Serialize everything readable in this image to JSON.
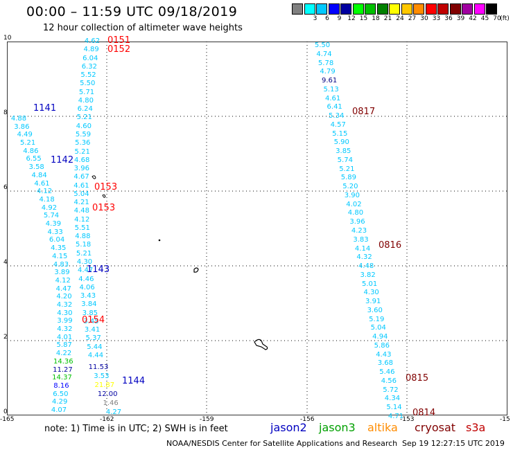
{
  "title": "00:00 – 11:59 UTC 09/18/2019",
  "subtitle": "12 hour collection of altimeter wave heights",
  "legend": {
    "unit_label": "(ft)",
    "swatches": [
      {
        "label": "",
        "color": "#808080"
      },
      {
        "label": "3",
        "color": "#00ffff"
      },
      {
        "label": "6",
        "color": "#00c8ff"
      },
      {
        "label": "9",
        "color": "#0000ff"
      },
      {
        "label": "12",
        "color": "#0000a0"
      },
      {
        "label": "15",
        "color": "#00ff00"
      },
      {
        "label": "18",
        "color": "#00c000"
      },
      {
        "label": "21",
        "color": "#008000"
      },
      {
        "label": "24",
        "color": "#ffff00"
      },
      {
        "label": "27",
        "color": "#ffc800"
      },
      {
        "label": "30",
        "color": "#ff8c00"
      },
      {
        "label": "33",
        "color": "#ff0000"
      },
      {
        "label": "36",
        "color": "#c00000"
      },
      {
        "label": "39",
        "color": "#800000"
      },
      {
        "label": "42",
        "color": "#a000a0"
      },
      {
        "label": "45",
        "color": "#ff00ff"
      },
      {
        "label": "70",
        "color": "#000000"
      }
    ]
  },
  "axes": {
    "x_ticks": [
      "-165",
      "-162",
      "-159",
      "-156",
      "-153",
      "-15"
    ],
    "y_ticks": [
      "0",
      "2",
      "4",
      "6",
      "8",
      "10"
    ]
  },
  "tracks": [
    {
      "name": "track-a",
      "values": [
        {
          "v": "4.62",
          "c": "#00c8ff"
        },
        {
          "v": "4.89",
          "c": "#00c8ff"
        },
        {
          "v": "6.04",
          "c": "#00c8ff"
        },
        {
          "v": "6.32",
          "c": "#00c8ff"
        },
        {
          "v": "5.52",
          "c": "#00c8ff"
        },
        {
          "v": "5.50",
          "c": "#00c8ff"
        },
        {
          "v": "5.71",
          "c": "#00c8ff"
        },
        {
          "v": "4.80",
          "c": "#00c8ff"
        },
        {
          "v": "6.24",
          "c": "#00c8ff"
        },
        {
          "v": "5.21",
          "c": "#00c8ff"
        },
        {
          "v": "4.60",
          "c": "#00c8ff"
        },
        {
          "v": "5.59",
          "c": "#00c8ff"
        },
        {
          "v": "5.36",
          "c": "#00c8ff"
        },
        {
          "v": "5.21",
          "c": "#00c8ff"
        },
        {
          "v": "4.68",
          "c": "#00c8ff"
        },
        {
          "v": "3.96",
          "c": "#00c8ff"
        },
        {
          "v": "4.67",
          "c": "#00c8ff"
        },
        {
          "v": "4.61",
          "c": "#00c8ff"
        },
        {
          "v": "5.04",
          "c": "#00c8ff"
        },
        {
          "v": "4.21",
          "c": "#00c8ff"
        },
        {
          "v": "4.48",
          "c": "#00c8ff"
        },
        {
          "v": "4.12",
          "c": "#00c8ff"
        },
        {
          "v": "5.51",
          "c": "#00c8ff"
        },
        {
          "v": "4.88",
          "c": "#00c8ff"
        },
        {
          "v": "5.18",
          "c": "#00c8ff"
        },
        {
          "v": "5.21",
          "c": "#00c8ff"
        },
        {
          "v": "4.30",
          "c": "#00c8ff"
        },
        {
          "v": "4.47",
          "c": "#00c8ff"
        },
        {
          "v": "4.46",
          "c": "#00c8ff"
        },
        {
          "v": "4.06",
          "c": "#00c8ff"
        },
        {
          "v": "3.43",
          "c": "#00c8ff"
        },
        {
          "v": "3.84",
          "c": "#00c8ff"
        },
        {
          "v": "3.85",
          "c": "#00c8ff"
        },
        {
          "v": "3.45",
          "c": "#00c8ff"
        },
        {
          "v": "3.41",
          "c": "#00c8ff"
        },
        {
          "v": "5.37",
          "c": "#00c8ff"
        },
        {
          "v": "5.44",
          "c": "#00c8ff"
        },
        {
          "v": "4.44",
          "c": "#00c8ff"
        }
      ]
    },
    {
      "name": "track-b",
      "values": [
        {
          "v": "4.88",
          "c": "#00c8ff"
        },
        {
          "v": "3.86",
          "c": "#00c8ff"
        },
        {
          "v": "4.49",
          "c": "#00c8ff"
        },
        {
          "v": "5.21",
          "c": "#00c8ff"
        },
        {
          "v": "4.86",
          "c": "#00c8ff"
        },
        {
          "v": "6.55",
          "c": "#00c8ff"
        },
        {
          "v": "3.58",
          "c": "#00c8ff"
        },
        {
          "v": "4.84",
          "c": "#00c8ff"
        },
        {
          "v": "4.61",
          "c": "#00c8ff"
        },
        {
          "v": "4.12",
          "c": "#00c8ff"
        },
        {
          "v": "4.18",
          "c": "#00c8ff"
        },
        {
          "v": "4.92",
          "c": "#00c8ff"
        },
        {
          "v": "5.74",
          "c": "#00c8ff"
        },
        {
          "v": "4.39",
          "c": "#00c8ff"
        },
        {
          "v": "4.33",
          "c": "#00c8ff"
        },
        {
          "v": "6.04",
          "c": "#00c8ff"
        },
        {
          "v": "4.35",
          "c": "#00c8ff"
        },
        {
          "v": "4.15",
          "c": "#00c8ff"
        },
        {
          "v": "4.83",
          "c": "#00c8ff"
        },
        {
          "v": "3.89",
          "c": "#00c8ff"
        },
        {
          "v": "4.12",
          "c": "#00c8ff"
        },
        {
          "v": "4.47",
          "c": "#00c8ff"
        },
        {
          "v": "4.20",
          "c": "#00c8ff"
        },
        {
          "v": "4.32",
          "c": "#00c8ff"
        },
        {
          "v": "4.30",
          "c": "#00c8ff"
        },
        {
          "v": "3.99",
          "c": "#00c8ff"
        },
        {
          "v": "4.32",
          "c": "#00c8ff"
        },
        {
          "v": "4.01",
          "c": "#00c8ff"
        },
        {
          "v": "5.87",
          "c": "#00c8ff"
        },
        {
          "v": "4.22",
          "c": "#00c8ff"
        },
        {
          "v": "14.36",
          "c": "#00c000"
        },
        {
          "v": "11.27",
          "c": "#0000a0"
        },
        {
          "v": "14.37",
          "c": "#00c000"
        },
        {
          "v": "8.16",
          "c": "#0000ff"
        },
        {
          "v": "6.50",
          "c": "#00c8ff"
        },
        {
          "v": "4.29",
          "c": "#00c8ff"
        },
        {
          "v": "4.07",
          "c": "#00c8ff"
        }
      ]
    },
    {
      "name": "track-c",
      "values": [
        {
          "v": "11.53",
          "c": "#0000a0"
        },
        {
          "v": "3.53",
          "c": "#00c8ff"
        },
        {
          "v": "21.87",
          "c": "#ffff00"
        },
        {
          "v": "12.00",
          "c": "#0000a0"
        },
        {
          "v": "1.46",
          "c": "#808080"
        },
        {
          "v": "4.27",
          "c": "#00c8ff"
        }
      ]
    },
    {
      "name": "track-d",
      "values": [
        {
          "v": "5.50",
          "c": "#00c8ff"
        },
        {
          "v": "4.74",
          "c": "#00c8ff"
        },
        {
          "v": "5.78",
          "c": "#00c8ff"
        },
        {
          "v": "4.79",
          "c": "#00c8ff"
        },
        {
          "v": "9.61",
          "c": "#000080"
        },
        {
          "v": "5.13",
          "c": "#00c8ff"
        },
        {
          "v": "4.61",
          "c": "#00c8ff"
        },
        {
          "v": "6.41",
          "c": "#00c8ff"
        },
        {
          "v": "5.34",
          "c": "#00c8ff"
        },
        {
          "v": "4.57",
          "c": "#00c8ff"
        },
        {
          "v": "5.15",
          "c": "#00c8ff"
        },
        {
          "v": "5.90",
          "c": "#00c8ff"
        },
        {
          "v": "3.85",
          "c": "#00c8ff"
        },
        {
          "v": "5.74",
          "c": "#00c8ff"
        },
        {
          "v": "5.21",
          "c": "#00c8ff"
        },
        {
          "v": "5.89",
          "c": "#00c8ff"
        },
        {
          "v": "5.20",
          "c": "#00c8ff"
        },
        {
          "v": "3.90",
          "c": "#00c8ff"
        },
        {
          "v": "4.02",
          "c": "#00c8ff"
        },
        {
          "v": "4.80",
          "c": "#00c8ff"
        },
        {
          "v": "3.96",
          "c": "#00c8ff"
        },
        {
          "v": "4.23",
          "c": "#00c8ff"
        },
        {
          "v": "3.83",
          "c": "#00c8ff"
        },
        {
          "v": "4.14",
          "c": "#00c8ff"
        },
        {
          "v": "4.32",
          "c": "#00c8ff"
        },
        {
          "v": "4.48",
          "c": "#00c8ff"
        },
        {
          "v": "3.82",
          "c": "#00c8ff"
        },
        {
          "v": "5.01",
          "c": "#00c8ff"
        },
        {
          "v": "4.30",
          "c": "#00c8ff"
        },
        {
          "v": "3.91",
          "c": "#00c8ff"
        },
        {
          "v": "3.60",
          "c": "#00c8ff"
        },
        {
          "v": "5.19",
          "c": "#00c8ff"
        },
        {
          "v": "5.04",
          "c": "#00c8ff"
        },
        {
          "v": "4.94",
          "c": "#00c8ff"
        },
        {
          "v": "5.86",
          "c": "#00c8ff"
        },
        {
          "v": "4.43",
          "c": "#00c8ff"
        },
        {
          "v": "3.68",
          "c": "#00c8ff"
        },
        {
          "v": "5.46",
          "c": "#00c8ff"
        },
        {
          "v": "4.56",
          "c": "#00c8ff"
        },
        {
          "v": "5.72",
          "c": "#00c8ff"
        },
        {
          "v": "4.34",
          "c": "#00c8ff"
        },
        {
          "v": "5.14",
          "c": "#00c8ff"
        },
        {
          "v": "4.71",
          "c": "#00c8ff"
        }
      ]
    }
  ],
  "pass_times": [
    {
      "t": "0151",
      "c": "#ff0000"
    },
    {
      "t": "0152",
      "c": "#ff0000"
    },
    {
      "t": "0153",
      "c": "#ff0000"
    },
    {
      "t": "0153",
      "c": "#ff0000"
    },
    {
      "t": "0154",
      "c": "#ff0000"
    },
    {
      "t": "1141",
      "c": "#0000c0"
    },
    {
      "t": "1142",
      "c": "#0000c0"
    },
    {
      "t": "1143",
      "c": "#0000c0"
    },
    {
      "t": "1144",
      "c": "#0000c0"
    },
    {
      "t": "0817",
      "c": "#800000"
    },
    {
      "t": "0816",
      "c": "#800000"
    },
    {
      "t": "0815",
      "c": "#800000"
    },
    {
      "t": "0814",
      "c": "#800000"
    }
  ],
  "note": "note:  1) Time is in UTC;  2) SWH is in feet",
  "satellites": [
    {
      "name": "jason2",
      "color": "#0000c0"
    },
    {
      "name": "jason3",
      "color": "#00a000"
    },
    {
      "name": "altika",
      "color": "#ff8c00"
    },
    {
      "name": "cryosat",
      "color": "#800000"
    },
    {
      "name": "s3a",
      "color": "#c00000"
    }
  ],
  "credit": "NOAA/NESDIS Center for Satellite Applications and Research",
  "timestamp": "Sep 19 12:27:15 UTC 2019"
}
